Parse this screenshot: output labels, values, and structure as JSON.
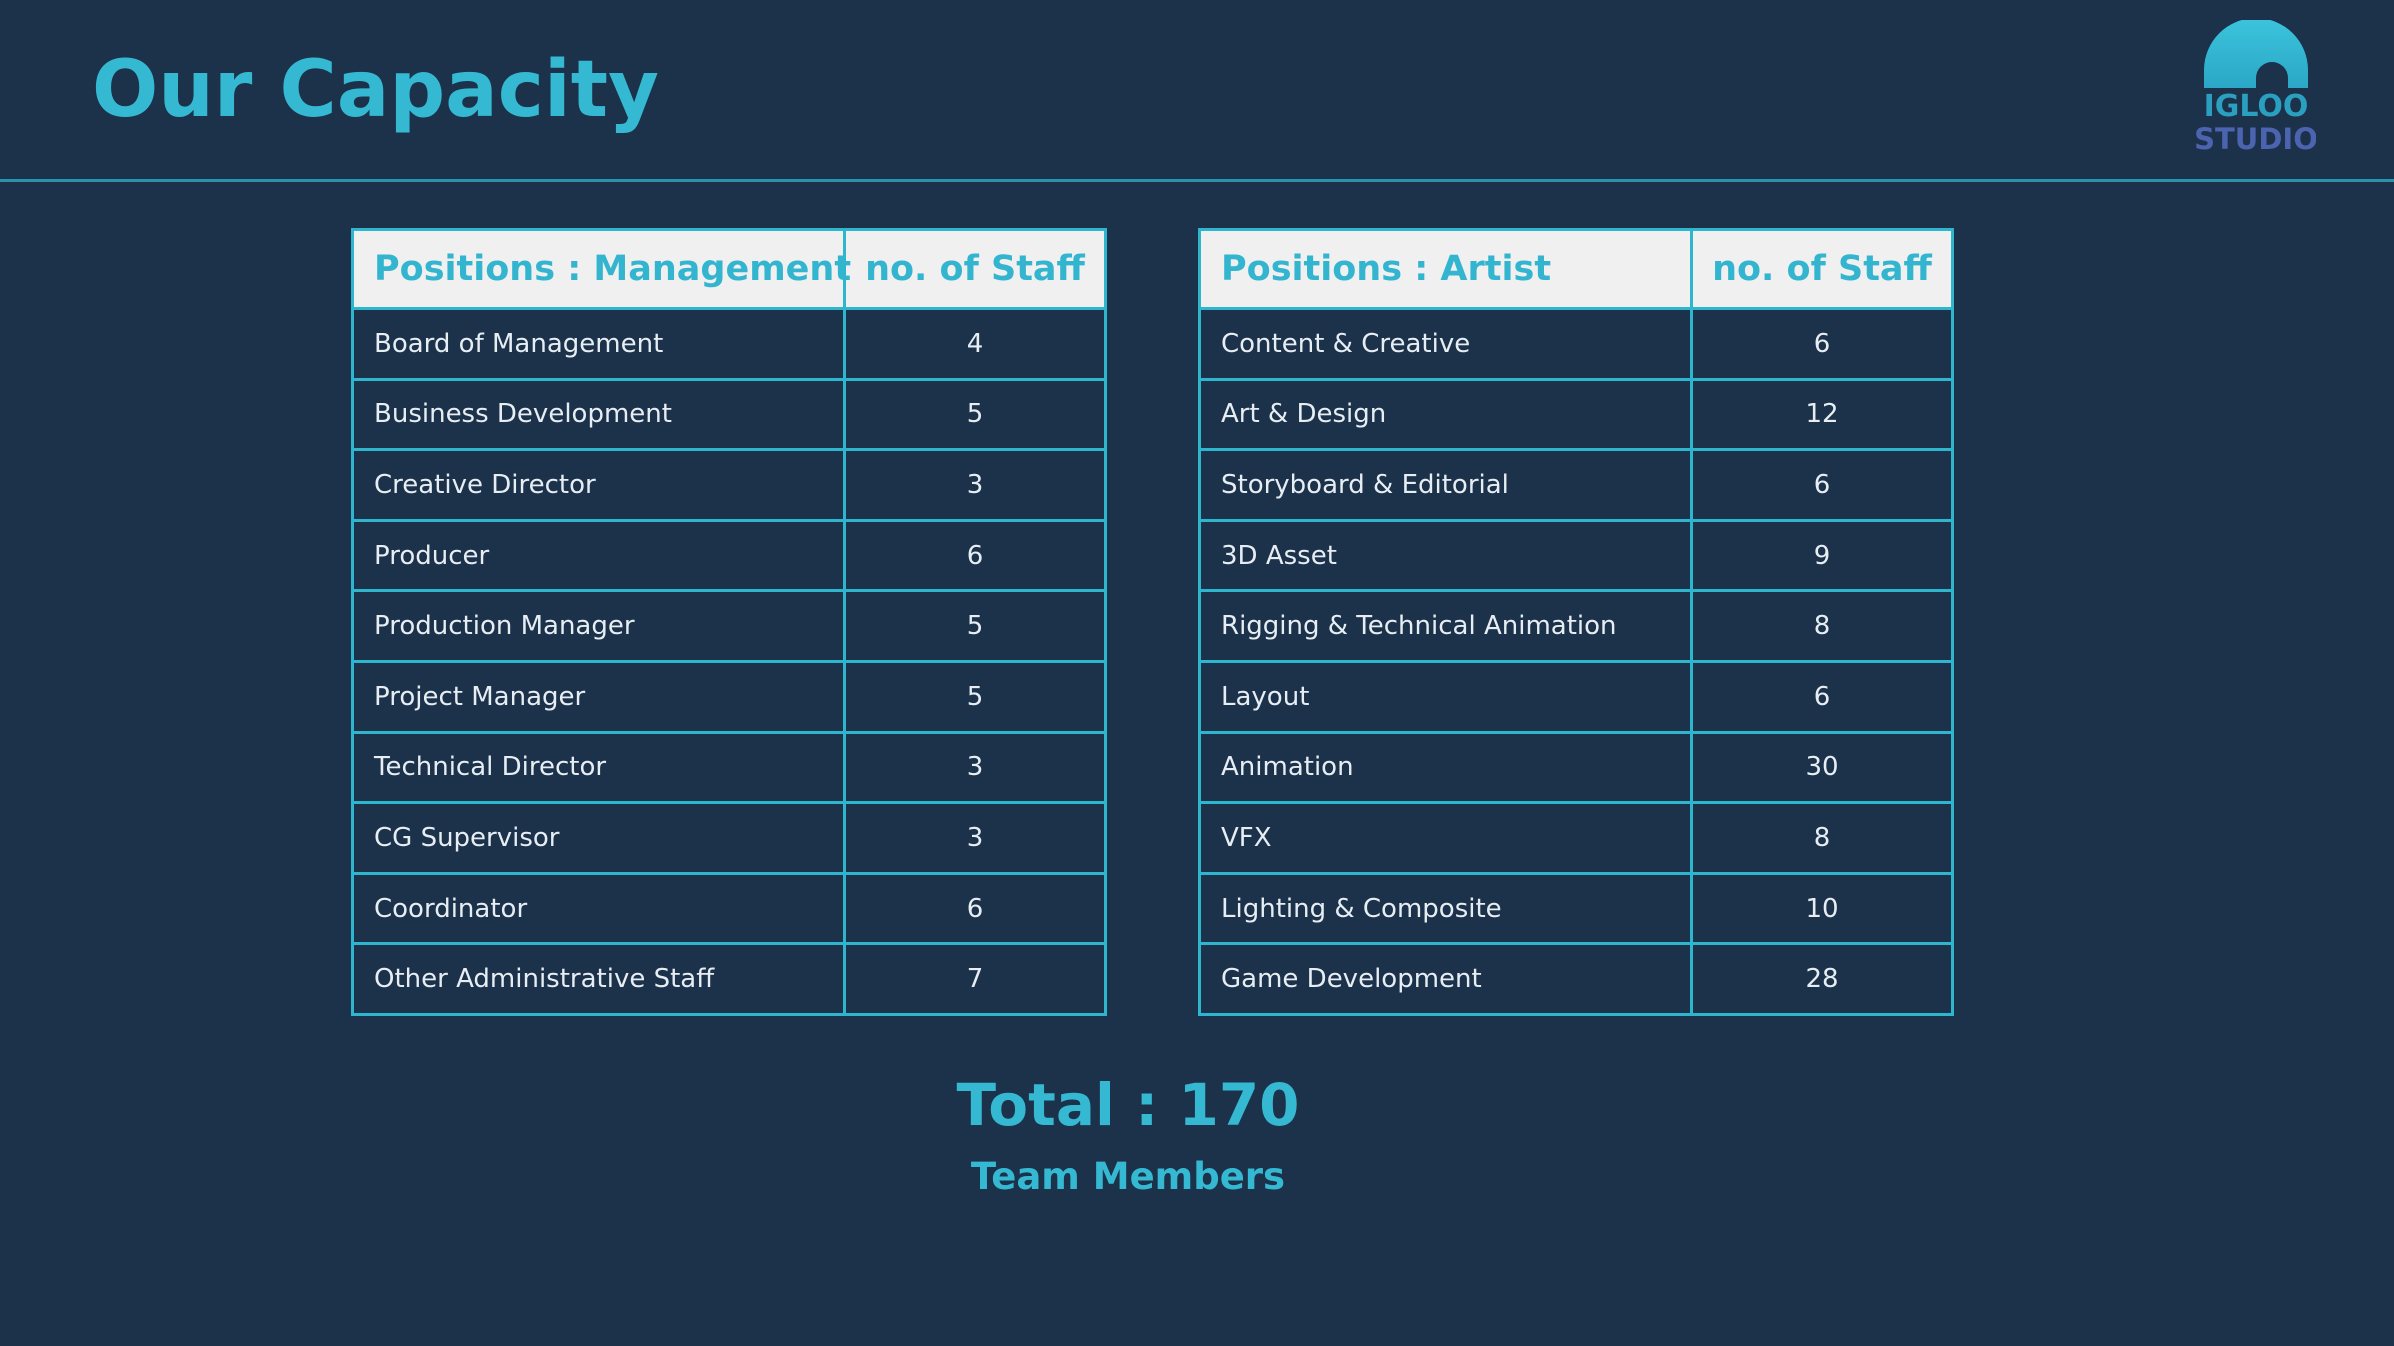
{
  "header": {
    "title": "Our Capacity",
    "logo_line1": "IGLOO",
    "logo_line2": "STUDIO"
  },
  "colors": {
    "background": "#1c314a",
    "accent": "#35b9d3",
    "header_fill": "#f0f0f0",
    "cell_text": "#e6edf3"
  },
  "management_table": {
    "headers": [
      "Positions : Management",
      "no. of Staff"
    ],
    "rows": [
      {
        "position": "Board of Management",
        "staff": "4"
      },
      {
        "position": "Business Development",
        "staff": "5"
      },
      {
        "position": "Creative Director",
        "staff": "3"
      },
      {
        "position": "Producer",
        "staff": "6"
      },
      {
        "position": "Production Manager",
        "staff": "5"
      },
      {
        "position": "Project Manager",
        "staff": "5"
      },
      {
        "position": "Technical Director",
        "staff": "3"
      },
      {
        "position": "CG Supervisor",
        "staff": "3"
      },
      {
        "position": "Coordinator",
        "staff": "6"
      },
      {
        "position": "Other Administrative Staff",
        "staff": "7"
      }
    ]
  },
  "artist_table": {
    "headers": [
      "Positions : Artist",
      "no. of Staff"
    ],
    "rows": [
      {
        "position": "Content & Creative",
        "staff": "6"
      },
      {
        "position": "Art & Design",
        "staff": "12"
      },
      {
        "position": "Storyboard & Editorial",
        "staff": "6"
      },
      {
        "position": "3D Asset",
        "staff": "9"
      },
      {
        "position": "Rigging & Technical Animation",
        "staff": "8"
      },
      {
        "position": "Layout",
        "staff": "6"
      },
      {
        "position": "Animation",
        "staff": "30"
      },
      {
        "position": "VFX",
        "staff": "8"
      },
      {
        "position": "Lighting & Composite",
        "staff": "10"
      },
      {
        "position": "Game Development",
        "staff": "28"
      }
    ]
  },
  "summary": {
    "total": "Total : 170",
    "caption": "Team Members"
  }
}
